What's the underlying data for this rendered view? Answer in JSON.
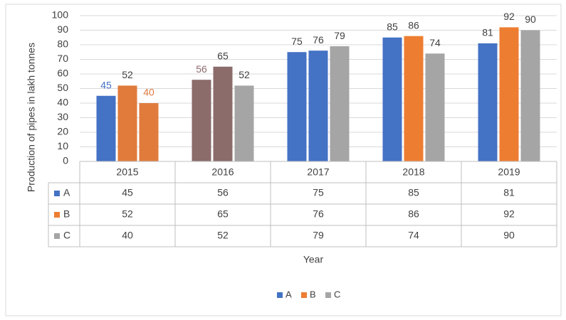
{
  "chart_data": {
    "type": "bar",
    "y_label": "Production of pipes in lakh tonnes",
    "x_label": "Year",
    "categories": [
      "2015",
      "2016",
      "2017",
      "2018",
      "2019"
    ],
    "series": [
      {
        "name": "A",
        "color": "#4472c4",
        "values": [
          45,
          56,
          75,
          85,
          81
        ],
        "colors": [
          "#4472c4",
          "#8c6b6b",
          "#4472c4",
          "#4472c4",
          "#4472c4"
        ],
        "label_colors": [
          "#4472c4",
          "#8c6b6b",
          "#404040",
          "#404040",
          "#404040"
        ]
      },
      {
        "name": "B",
        "color": "#ed7d31",
        "values": [
          52,
          65,
          76,
          86,
          92
        ],
        "colors": [
          "#e07b3c",
          "#8c6b6b",
          "#4472c4",
          "#ed7d31",
          "#ed7d31"
        ],
        "label_colors": [
          "#404040",
          "#404040",
          "#404040",
          "#404040",
          "#404040"
        ]
      },
      {
        "name": "C",
        "color": "#a5a5a5",
        "values": [
          40,
          52,
          79,
          74,
          90
        ],
        "colors": [
          "#e07b3c",
          "#a5a5a5",
          "#a5a5a5",
          "#a5a5a5",
          "#a5a5a5"
        ],
        "label_colors": [
          "#e07b3c",
          "#404040",
          "#404040",
          "#404040",
          "#404040"
        ]
      }
    ],
    "ylim": [
      0,
      100
    ],
    "yticks": [
      0,
      10,
      20,
      30,
      40,
      50,
      60,
      70,
      80,
      90,
      100
    ],
    "grid": true,
    "legend": "bottom",
    "data_table": true
  }
}
